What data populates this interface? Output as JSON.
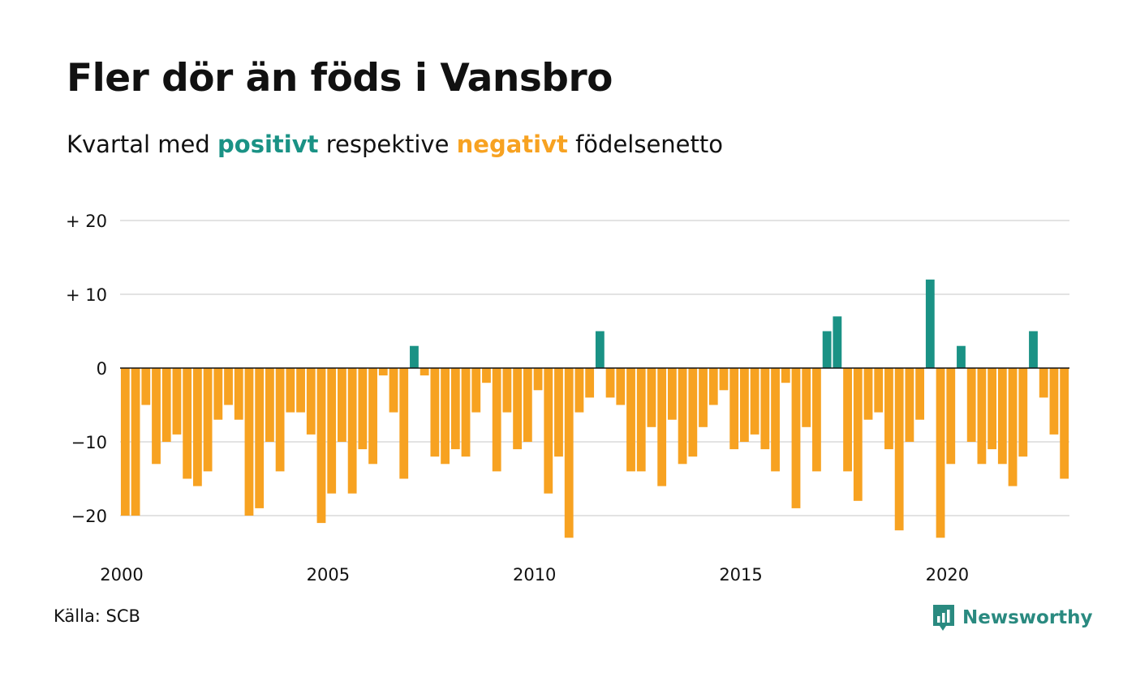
{
  "title": "Fler dör än föds i Vansbro",
  "subtitle": {
    "prefix": "Kvartal med ",
    "positive": "positivt",
    "middle": " respektive ",
    "negative": "negativt",
    "suffix": " födelsenetto"
  },
  "source": "Källa: SCB",
  "brand": {
    "name": "Newsworthy",
    "icon": "newsworthy-logo-icon"
  },
  "colors": {
    "positive": "#1a9285",
    "negative": "#f7a221",
    "grid": "#e3e3e3",
    "zero_line": "#111111"
  },
  "chart_data": {
    "type": "bar",
    "ylim": [
      -25,
      20
    ],
    "yticks": [
      20,
      10,
      0,
      -10,
      -20
    ],
    "ytick_labels": [
      "+ 20",
      "+ 10",
      "0",
      "−10",
      "−20"
    ],
    "xtick_labels": [
      "2000",
      "2005",
      "2010",
      "2015",
      "2020"
    ],
    "grid": true,
    "start_year": 2000,
    "values": [
      -20,
      -20,
      -5,
      -13,
      -10,
      -9,
      -15,
      -16,
      -14,
      -7,
      -5,
      -7,
      -20,
      -19,
      -10,
      -14,
      -6,
      -6,
      -9,
      -21,
      -17,
      -10,
      -17,
      -11,
      -13,
      -1,
      -6,
      -15,
      3,
      -1,
      -12,
      -13,
      -11,
      -12,
      -6,
      -2,
      -14,
      -6,
      -11,
      -10,
      -3,
      -17,
      -12,
      -23,
      -6,
      -4,
      5,
      -4,
      -5,
      -14,
      -14,
      -8,
      -16,
      -7,
      -13,
      -12,
      -8,
      -5,
      -3,
      -11,
      -10,
      -9,
      -11,
      -14,
      -2,
      -19,
      -8,
      -14,
      5,
      7,
      -14,
      -18,
      -7,
      -6,
      -11,
      -22,
      -10,
      -7,
      12,
      -23,
      -13,
      3,
      -10,
      -13,
      -11,
      -13,
      -16,
      -12,
      5,
      -4,
      -9,
      -15
    ]
  }
}
